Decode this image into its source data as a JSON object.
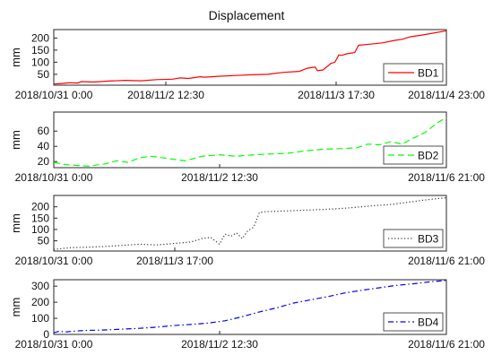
{
  "figure": {
    "title": "Displacement"
  },
  "chart_data": [
    {
      "type": "line",
      "ylabel": "mm",
      "ylim": [
        5,
        235
      ],
      "yticks": [
        50,
        100,
        150,
        200
      ],
      "xticks": [
        "2018/10/31 0:00",
        "2018/11/2  12:30",
        "2018/11/3 17:30",
        "2018/11/4 23:00"
      ],
      "xrange_days": [
        0,
        4.958
      ],
      "grid": false,
      "legend": "bottom-right",
      "series": [
        {
          "name": "BD1",
          "color": "#ff0000",
          "style": "solid",
          "x": [
            0,
            0.1,
            0.2,
            0.3,
            0.35,
            0.5,
            0.7,
            0.9,
            1.1,
            1.3,
            1.5,
            1.6,
            1.7,
            1.85,
            1.9,
            2.1,
            2.3,
            2.5,
            2.7,
            2.9,
            3.1,
            3.2,
            3.3,
            3.33,
            3.4,
            3.5,
            3.55,
            3.6,
            3.63,
            3.7,
            3.8,
            3.85,
            4.0,
            4.15,
            4.3,
            4.4,
            4.5,
            4.7,
            4.958
          ],
          "y": [
            10,
            12,
            15,
            14,
            20,
            18,
            22,
            25,
            23,
            28,
            30,
            35,
            33,
            40,
            38,
            42,
            45,
            48,
            50,
            58,
            62,
            75,
            80,
            65,
            68,
            95,
            100,
            130,
            128,
            135,
            140,
            170,
            175,
            180,
            190,
            195,
            205,
            215,
            230
          ]
        }
      ]
    },
    {
      "type": "line",
      "ylabel": "mm",
      "ylim": [
        12,
        85
      ],
      "yticks": [
        20,
        40,
        60
      ],
      "xticks": [
        "2018/10/31 0:00",
        "2018/11/2  12:30",
        "2018/11/6   21:00"
      ],
      "xrange_days": [
        0,
        6.875
      ],
      "grid": false,
      "legend": "bottom-right",
      "series": [
        {
          "name": "BD2",
          "color": "#00ff00",
          "style": "dashed",
          "x": [
            0,
            0.2,
            0.4,
            0.6,
            0.9,
            1.1,
            1.3,
            1.5,
            1.7,
            2.0,
            2.3,
            2.6,
            2.9,
            3.2,
            3.5,
            3.8,
            4.1,
            4.4,
            4.7,
            5.0,
            5.3,
            5.5,
            5.7,
            5.9,
            6.1,
            6.3,
            6.5,
            6.7,
            6.875
          ],
          "y": [
            19,
            16,
            15,
            14,
            17,
            21,
            19,
            25,
            27,
            24,
            21,
            27,
            29,
            27,
            29,
            30,
            31,
            34,
            36,
            37,
            38,
            43,
            42,
            46,
            43,
            51,
            58,
            70,
            78
          ]
        }
      ]
    },
    {
      "type": "line",
      "ylabel": "mm",
      "ylim": [
        5,
        250
      ],
      "yticks": [
        50,
        100,
        150,
        200
      ],
      "xticks": [
        "2018/10/31 0:00",
        "2018/11/3 17:00",
        "2018/11/6   21:00"
      ],
      "xrange_days": [
        0,
        6.875
      ],
      "grid": false,
      "legend": "bottom-right",
      "series": [
        {
          "name": "BD3",
          "color": "#333333",
          "style": "dotted",
          "x": [
            0,
            0.3,
            0.6,
            0.9,
            1.2,
            1.5,
            1.8,
            2.1,
            2.4,
            2.6,
            2.75,
            2.9,
            3.0,
            3.1,
            3.2,
            3.3,
            3.4,
            3.5,
            3.6,
            3.7,
            3.9,
            4.1,
            4.4,
            4.7,
            5.0,
            5.3,
            5.6,
            5.9,
            6.2,
            6.5,
            6.875
          ],
          "y": [
            12,
            20,
            22,
            25,
            30,
            35,
            32,
            38,
            45,
            60,
            65,
            35,
            80,
            70,
            85,
            60,
            95,
            110,
            175,
            178,
            180,
            182,
            185,
            188,
            192,
            198,
            205,
            210,
            220,
            230,
            240
          ]
        }
      ]
    },
    {
      "type": "line",
      "ylabel": "mm",
      "ylim": [
        0,
        340
      ],
      "yticks": [
        0,
        100,
        200,
        300
      ],
      "xticks": [
        "2018/10/31 0:00",
        "2018/11/2  12:30",
        "2018/11/6   21:00"
      ],
      "xrange_days": [
        0,
        6.875
      ],
      "grid": false,
      "legend": "bottom-right",
      "series": [
        {
          "name": "BD4",
          "color": "#0000ff",
          "style": "dashdot",
          "x": [
            0,
            0.1,
            0.2,
            0.4,
            0.6,
            0.9,
            1.2,
            1.5,
            1.8,
            2.1,
            2.4,
            2.7,
            3.0,
            3.3,
            3.6,
            3.9,
            4.2,
            4.5,
            4.8,
            5.1,
            5.4,
            5.7,
            6.0,
            6.3,
            6.6,
            6.875
          ],
          "y": [
            10,
            20,
            15,
            22,
            25,
            28,
            33,
            38,
            45,
            55,
            62,
            70,
            85,
            110,
            140,
            165,
            195,
            215,
            235,
            258,
            275,
            290,
            305,
            315,
            328,
            335
          ]
        }
      ]
    }
  ]
}
